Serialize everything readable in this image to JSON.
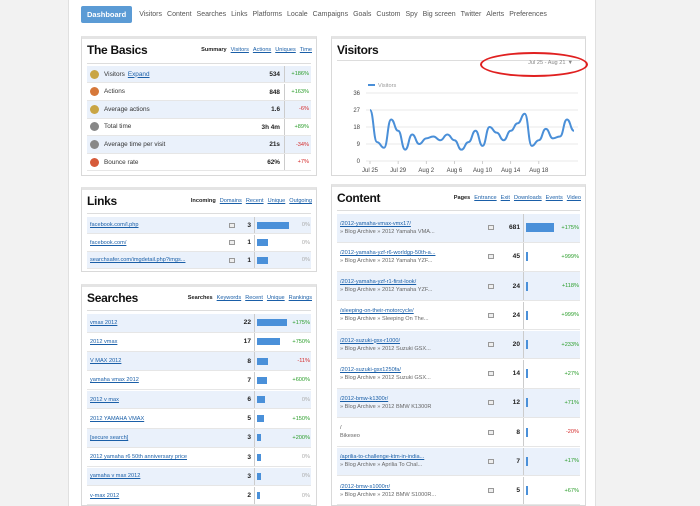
{
  "nav": {
    "tabs": [
      "Dashboard",
      "Visitors",
      "Content",
      "Searches",
      "Links",
      "Platforms",
      "Locale",
      "Campaigns",
      "Goals",
      "Custom",
      "Spy",
      "Big screen",
      "Twitter",
      "Alerts",
      "Preferences"
    ]
  },
  "basics": {
    "title": "The Basics",
    "tabs": [
      "Summary",
      "Visitors",
      "Actions",
      "Uniques",
      "Time"
    ],
    "rows": [
      {
        "icon": "visitors-icon",
        "color": "#c9a544",
        "label": "Visitors",
        "link": "Expand",
        "value": "534",
        "change": "+186%",
        "dir": "pos"
      },
      {
        "icon": "actions-icon",
        "color": "#d6783a",
        "label": "Actions",
        "link": "",
        "value": "848",
        "change": "+163%",
        "dir": "pos"
      },
      {
        "icon": "average-actions-icon",
        "color": "#c9a544",
        "label": "Average actions",
        "link": "",
        "value": "1.6",
        "change": "-6%",
        "dir": "neg"
      },
      {
        "icon": "clock-icon",
        "color": "#888888",
        "label": "Total time",
        "link": "",
        "value": "3h 4m",
        "change": "+89%",
        "dir": "pos"
      },
      {
        "icon": "clock-icon",
        "color": "#888888",
        "label": "Average time per visit",
        "link": "",
        "value": "21s",
        "change": "-34%",
        "dir": "neg"
      },
      {
        "icon": "bounce-icon",
        "color": "#d65a3a",
        "label": "Bounce rate",
        "link": "",
        "value": "62%",
        "change": "+7%",
        "dir": "neg"
      }
    ]
  },
  "visitors": {
    "title": "Visitors",
    "date_range": "Jul 25 - Aug 21",
    "arrow": "▼",
    "chart_data": {
      "type": "line",
      "series": [
        {
          "name": "Visitors",
          "values": [
            27,
            10,
            7,
            22,
            16,
            6,
            14,
            9,
            12,
            13,
            11,
            14,
            11,
            6,
            10,
            16,
            8,
            18,
            15,
            11,
            16,
            20,
            25,
            8,
            11,
            17,
            12,
            13,
            22,
            16
          ]
        }
      ],
      "x_ticks": [
        "Jul 25",
        "Jul 29",
        "Aug 2",
        "Aug 6",
        "Aug 10",
        "Aug 14",
        "Aug 18"
      ],
      "y_ticks": [
        0,
        9,
        18,
        27,
        36
      ],
      "ylim": [
        0,
        36
      ],
      "color": "#4a8fd8",
      "grid": true,
      "legend": "top-left"
    }
  },
  "links": {
    "title": "Links",
    "tabs": [
      "Incoming",
      "Domains",
      "Recent",
      "Unique",
      "Outgoing"
    ],
    "rows": [
      {
        "name": "facebook.com/l.php",
        "value": "3",
        "bar": 1.0,
        "pct": "0%"
      },
      {
        "name": "facebook.com/",
        "value": "1",
        "bar": 0.33,
        "pct": "0%"
      },
      {
        "name": "searchsafer.com/imgdetail.php?imgs...",
        "value": "1",
        "bar": 0.33,
        "pct": "0%"
      }
    ]
  },
  "searches": {
    "title": "Searches",
    "tabs": [
      "Searches",
      "Keywords",
      "Recent",
      "Unique",
      "Rankings"
    ],
    "rows": [
      {
        "name": "vmax 2012",
        "value": "22",
        "bar": 1.0,
        "pct": "+175%",
        "dir": "pos",
        "link": true
      },
      {
        "name": "2012 vmax",
        "value": "17",
        "bar": 0.77,
        "pct": "+750%",
        "dir": "pos",
        "link": true
      },
      {
        "name": "V MAX 2012",
        "value": "8",
        "bar": 0.36,
        "pct": "-11%",
        "dir": "neg",
        "link": true
      },
      {
        "name": "yamaha vmax 2012",
        "value": "7",
        "bar": 0.32,
        "pct": "+600%",
        "dir": "pos",
        "link": true
      },
      {
        "name": "2012 v max",
        "value": "6",
        "bar": 0.27,
        "pct": "0%",
        "dir": "gray",
        "link": true
      },
      {
        "name": "2012 YAMAHA VMAX",
        "value": "5",
        "bar": 0.23,
        "pct": "+150%",
        "dir": "pos",
        "link": true
      },
      {
        "name": "[secure search]",
        "value": "3",
        "bar": 0.14,
        "pct": "+200%",
        "dir": "pos",
        "link": true
      },
      {
        "name": "2012 yamaha r6 50th anniversary price",
        "value": "3",
        "bar": 0.14,
        "pct": "0%",
        "dir": "gray",
        "link": true
      },
      {
        "name": "yamaha v max 2012",
        "value": "3",
        "bar": 0.14,
        "pct": "0%",
        "dir": "gray",
        "link": true
      },
      {
        "name": "v-max 2012",
        "value": "2",
        "bar": 0.09,
        "pct": "0%",
        "dir": "gray",
        "link": true
      }
    ]
  },
  "content": {
    "title": "Content",
    "tabs": [
      "Pages",
      "Entrance",
      "Exit",
      "Downloads",
      "Events",
      "Video"
    ],
    "rows": [
      {
        "name": "/2012-yamaha-vmax-vmx17/",
        "sub": "» Blog Archive » 2012 Yamaha VMA...",
        "value": "681",
        "bar": 1.0,
        "pct": "+175%",
        "dir": "pos"
      },
      {
        "name": "/2012-yamaha-yzf-r6-worldgp-50th-a...",
        "sub": "» Blog Archive » 2012 Yamaha YZF...",
        "value": "45",
        "bar": 0.066,
        "pct": "+999%",
        "dir": "pos"
      },
      {
        "name": "/2012-yamaha-yzf-r1-first-look/",
        "sub": "» Blog Archive » 2012 Yamaha YZF...",
        "value": "24",
        "bar": 0.035,
        "pct": "+118%",
        "dir": "pos"
      },
      {
        "name": "/sleeping-on-their-motorcycle/",
        "sub": "» Blog Archive » Sleeping On The...",
        "value": "24",
        "bar": 0.035,
        "pct": "+999%",
        "dir": "pos"
      },
      {
        "name": "/2012-suzuki-gsx-r1000/",
        "sub": "» Blog Archive » 2012 Suzuki GSX...",
        "value": "20",
        "bar": 0.03,
        "pct": "+233%",
        "dir": "pos"
      },
      {
        "name": "/2012-suzuki-gsx1250fa/",
        "sub": "» Blog Archive » 2012 Suzuki GSX...",
        "value": "14",
        "bar": 0.02,
        "pct": "+27%",
        "dir": "pos"
      },
      {
        "name": "/2012-bmw-k1300r/",
        "sub": "» Blog Archive » 2012 BMW K1300R",
        "value": "12",
        "bar": 0.018,
        "pct": "+71%",
        "dir": "pos"
      },
      {
        "name": "/",
        "sub": "Bikeseo",
        "value": "8",
        "bar": 0.012,
        "pct": "-20%",
        "dir": "neg"
      },
      {
        "name": "/aprilia-to-challenge-ktm-in-india...",
        "sub": "» Blog Archive » Aprilia To Chal...",
        "value": "7",
        "bar": 0.01,
        "pct": "+17%",
        "dir": "pos"
      },
      {
        "name": "/2012-bmw-s1000rr/",
        "sub": "» Blog Archive » 2012 BMW S1000R...",
        "value": "5",
        "bar": 0.007,
        "pct": "+67%",
        "dir": "pos"
      }
    ]
  }
}
